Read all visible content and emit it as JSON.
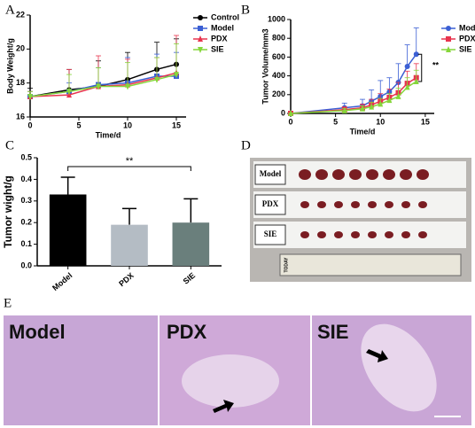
{
  "chart_data": [
    {
      "type": "line",
      "label": "A",
      "x_label": "Time/d",
      "y_label": "Body Weight/g",
      "x": [
        0,
        4,
        7,
        10,
        13,
        15
      ],
      "xlim": [
        0,
        16
      ],
      "xticks": [
        0,
        5,
        10,
        15
      ],
      "ylim": [
        16,
        22
      ],
      "yticks": [
        16,
        18,
        20,
        22
      ],
      "series": [
        {
          "name": "Control",
          "color": "#000000",
          "marker": "circle",
          "values": [
            17.2,
            17.6,
            17.8,
            18.2,
            18.8,
            19.1
          ],
          "errors": [
            0.5,
            1.2,
            1.5,
            1.6,
            1.6,
            1.5
          ]
        },
        {
          "name": "Model",
          "color": "#3b5fd4",
          "marker": "square",
          "values": [
            17.2,
            17.5,
            17.9,
            18.0,
            18.4,
            18.4
          ],
          "errors": [
            0.3,
            0.5,
            1.0,
            1.5,
            1.3,
            1.4
          ]
        },
        {
          "name": "PDX",
          "color": "#e8344e",
          "marker": "triangle",
          "values": [
            17.2,
            17.3,
            17.8,
            17.9,
            18.3,
            18.6
          ],
          "errors": [
            0.3,
            1.5,
            1.8,
            1.5,
            1.2,
            2.2
          ]
        },
        {
          "name": "SIE",
          "color": "#86d63a",
          "marker": "triangle-down",
          "values": [
            17.2,
            17.5,
            17.8,
            17.8,
            18.2,
            18.5
          ],
          "errors": [
            0.3,
            1.0,
            1.1,
            1.4,
            1.3,
            1.8
          ]
        }
      ]
    },
    {
      "type": "line",
      "label": "B",
      "x_label": "Time/d",
      "y_label": "Tumor  Volume/mm3",
      "annotation": "**",
      "x": [
        0,
        6,
        8,
        9,
        10,
        11,
        12,
        13,
        14
      ],
      "xlim": [
        0,
        16
      ],
      "xticks": [
        0,
        5,
        10,
        15
      ],
      "ylim": [
        0,
        1000
      ],
      "yticks": [
        0,
        200,
        400,
        600,
        800,
        1000
      ],
      "series": [
        {
          "name": "Model",
          "color": "#3b5fd4",
          "marker": "circle",
          "values": [
            0,
            60,
            80,
            130,
            180,
            230,
            330,
            500,
            630
          ],
          "errors": [
            0,
            50,
            70,
            120,
            170,
            150,
            200,
            230,
            280
          ]
        },
        {
          "name": "PDX",
          "color": "#e8344e",
          "marker": "square",
          "values": [
            0,
            40,
            60,
            90,
            130,
            170,
            220,
            320,
            380
          ],
          "errors": [
            0,
            30,
            40,
            60,
            80,
            90,
            110,
            130,
            150
          ]
        },
        {
          "name": "SIE",
          "color": "#86d63a",
          "marker": "triangle",
          "values": [
            0,
            30,
            50,
            70,
            100,
            140,
            180,
            280,
            340
          ],
          "errors": [
            0,
            20,
            30,
            50,
            60,
            70,
            90,
            100,
            120
          ]
        }
      ]
    },
    {
      "type": "bar",
      "label": "C",
      "y_label": "Tumor wight/g",
      "annotation": "**",
      "categories": [
        "Model",
        "PDX",
        "SIE"
      ],
      "values": [
        0.33,
        0.19,
        0.2
      ],
      "errors": [
        0.08,
        0.075,
        0.11
      ],
      "colors": [
        "#000000",
        "#b4bcc4",
        "#6a7f7c"
      ],
      "ylim": [
        0,
        0.5
      ],
      "yticks": [
        {
          "value": 0,
          "label": "0.0"
        },
        0.1,
        0.2,
        0.3,
        0.4,
        0.5
      ]
    }
  ],
  "figure_d": {
    "label": "D",
    "rows": [
      "Model",
      "PDX",
      "SIE"
    ],
    "ruler": "TODAY"
  },
  "figure_e": {
    "label": "E",
    "panels": [
      "Model",
      "PDX",
      "SIE"
    ]
  }
}
